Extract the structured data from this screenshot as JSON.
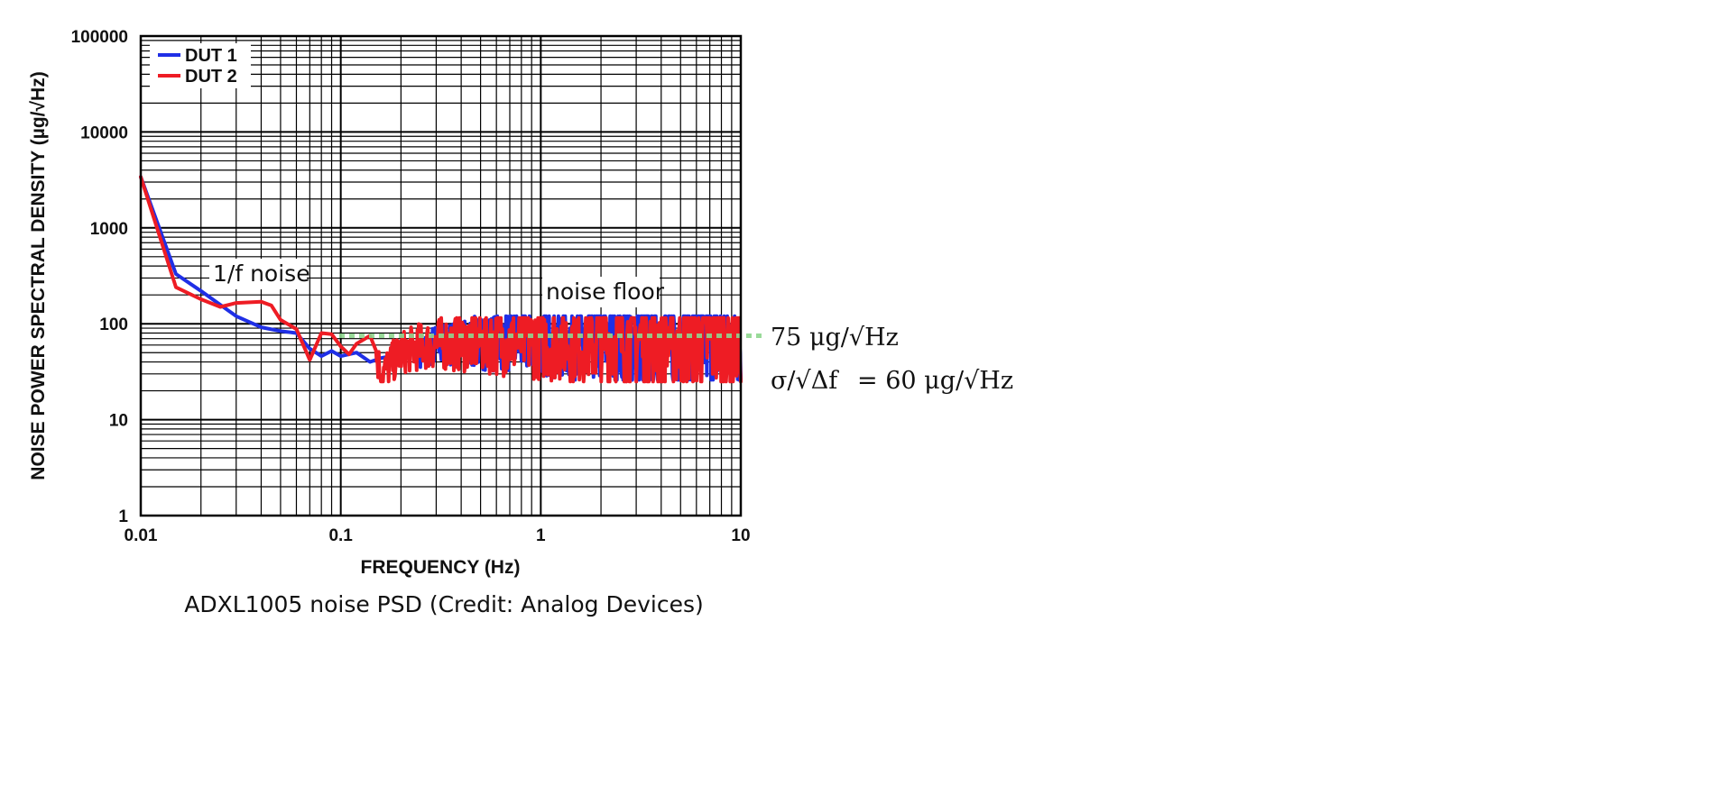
{
  "chart_data": {
    "type": "line",
    "xscale": "log",
    "yscale": "log",
    "xlim": [
      0.01,
      10
    ],
    "ylim": [
      1,
      100000
    ],
    "xlabel": "FREQUENCY (Hz)",
    "ylabel": "NOISE POWER SPECTRAL DENSITY (µg/√Hz)",
    "x_ticks": [
      "0.01",
      "0.1",
      "1",
      "10"
    ],
    "y_ticks": [
      "1",
      "10",
      "100",
      "1000",
      "10000",
      "100000"
    ],
    "grid": true,
    "legend_position": "top-left",
    "series": [
      {
        "name": "DUT 1",
        "color": "#1f2fe6",
        "points": [
          [
            0.01,
            3400
          ],
          [
            0.015,
            330
          ],
          [
            0.02,
            220
          ],
          [
            0.03,
            120
          ],
          [
            0.04,
            92
          ],
          [
            0.05,
            84
          ],
          [
            0.06,
            80
          ],
          [
            0.07,
            55
          ],
          [
            0.08,
            46
          ],
          [
            0.09,
            52
          ],
          [
            0.1,
            46
          ],
          [
            0.12,
            50
          ],
          [
            0.14,
            40
          ],
          [
            0.16,
            44
          ],
          [
            0.2,
            48
          ],
          [
            0.25,
            55
          ],
          [
            0.3,
            60
          ],
          [
            0.4,
            62
          ],
          [
            0.5,
            64
          ],
          [
            0.7,
            66
          ],
          [
            1,
            67
          ],
          [
            2,
            68
          ],
          [
            5,
            68
          ],
          [
            10,
            68
          ]
        ],
        "noise_band": {
          "x_start": 0.25,
          "x_end": 10,
          "low": 26,
          "high": 120
        }
      },
      {
        "name": "DUT 2",
        "color": "#ee1c24",
        "points": [
          [
            0.01,
            3400
          ],
          [
            0.015,
            240
          ],
          [
            0.02,
            180
          ],
          [
            0.025,
            150
          ],
          [
            0.03,
            165
          ],
          [
            0.04,
            170
          ],
          [
            0.045,
            155
          ],
          [
            0.05,
            110
          ],
          [
            0.06,
            88
          ],
          [
            0.07,
            42
          ],
          [
            0.08,
            80
          ],
          [
            0.09,
            78
          ],
          [
            0.1,
            58
          ],
          [
            0.11,
            48
          ],
          [
            0.12,
            62
          ],
          [
            0.14,
            75
          ],
          [
            0.16,
            30
          ],
          [
            0.2,
            50
          ],
          [
            0.25,
            58
          ],
          [
            0.3,
            62
          ],
          [
            0.4,
            64
          ],
          [
            0.5,
            65
          ],
          [
            0.7,
            66
          ],
          [
            1,
            67
          ],
          [
            2,
            68
          ],
          [
            5,
            68
          ],
          [
            10,
            68
          ]
        ],
        "noise_band": {
          "x_start": 0.15,
          "x_end": 10,
          "low": 25,
          "high": 115
        }
      }
    ],
    "reference_line": {
      "y": 75,
      "color": "#8fd68f",
      "style": "dashed"
    }
  },
  "annotations": {
    "one_over_f": "1/f noise",
    "noise_floor": "noise floor",
    "level_value": "75 μg/√Hz",
    "sigma_eq_lhs": "σ/√Δf",
    "sigma_eq_rhs": "= 60 μg/√Hz"
  },
  "legend": [
    {
      "label": "DUT 1",
      "color": "#1f2fe6"
    },
    {
      "label": "DUT 2",
      "color": "#ee1c24"
    }
  ],
  "caption": "ADXL1005 noise PSD (Credit: Analog Devices)"
}
